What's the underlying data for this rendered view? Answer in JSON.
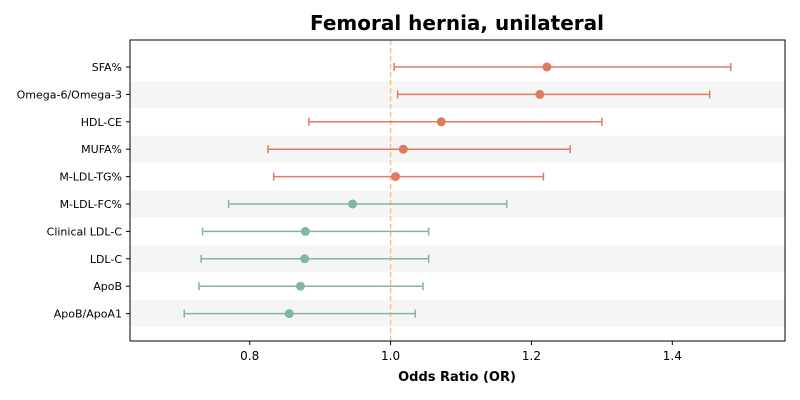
{
  "chart_data": {
    "type": "forest",
    "title": "Femoral hernia, unilateral",
    "xlabel": "Odds Ratio (OR)",
    "xlim": [
      0.63,
      1.56
    ],
    "xticks": [
      0.8,
      1.0,
      1.2,
      1.4
    ],
    "xtick_labels": [
      "0.8",
      "1.0",
      "1.2",
      "1.4"
    ],
    "reference_line": 1.0,
    "reference_color": "#f5c77e",
    "positive_color": "#e07b5f",
    "negative_color": "#82b79e",
    "band_color": "#f5f5f5",
    "rows": [
      {
        "label": "SFA%",
        "or": 1.222,
        "lower": 1.005,
        "upper": 1.483
      },
      {
        "label": "Omega-6/Omega-3",
        "or": 1.212,
        "lower": 1.01,
        "upper": 1.453
      },
      {
        "label": "HDL-CE",
        "or": 1.072,
        "lower": 0.884,
        "upper": 1.3
      },
      {
        "label": "MUFA%",
        "or": 1.018,
        "lower": 0.826,
        "upper": 1.255
      },
      {
        "label": "M-LDL-TG%",
        "or": 1.007,
        "lower": 0.834,
        "upper": 1.217
      },
      {
        "label": "M-LDL-FC%",
        "or": 0.946,
        "lower": 0.77,
        "upper": 1.165
      },
      {
        "label": "Clinical LDL-C",
        "or": 0.879,
        "lower": 0.733,
        "upper": 1.054
      },
      {
        "label": "LDL-C",
        "or": 0.878,
        "lower": 0.731,
        "upper": 1.054
      },
      {
        "label": "ApoB",
        "or": 0.872,
        "lower": 0.728,
        "upper": 1.046
      },
      {
        "label": "ApoB/ApoA1",
        "or": 0.856,
        "lower": 0.707,
        "upper": 1.035
      }
    ]
  }
}
